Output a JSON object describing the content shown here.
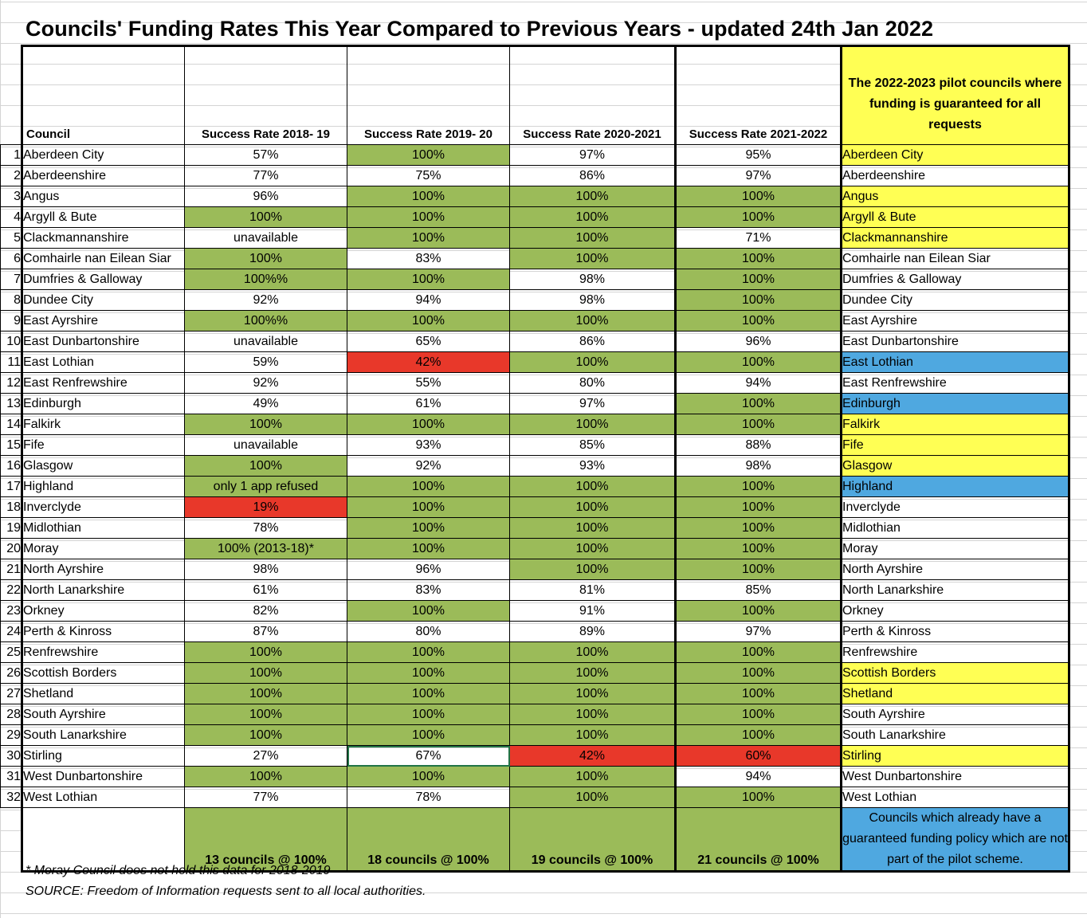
{
  "title": "Councils' Funding Rates This Year Compared to Previous Years - updated 24th Jan 2022",
  "headers": {
    "council": "Council",
    "y1819": "Success Rate 2018- 19",
    "y1920": "Success Rate 2019- 20",
    "y2021": "Success Rate 2020-2021",
    "y2122": "Success Rate 2021-2022",
    "pilot": "The 2022-2023 pilot councils where funding is guaranteed for all requests"
  },
  "rows": [
    {
      "n": "1",
      "council": "Aberdeen City",
      "v": [
        "57%",
        "100%",
        "97%",
        "95%"
      ],
      "pilot": "Aberdeen City"
    },
    {
      "n": "2",
      "council": "Aberdeenshire",
      "v": [
        "77%",
        "75%",
        "86%",
        "97%"
      ],
      "pilot": "Aberdeenshire"
    },
    {
      "n": "3",
      "council": "Angus",
      "v": [
        "96%",
        "100%",
        "100%",
        "100%"
      ],
      "pilot": "Angus"
    },
    {
      "n": "4",
      "council": "Argyll & Bute",
      "v": [
        "100%",
        "100%",
        "100%",
        "100%"
      ],
      "pilot": "Argyll & Bute"
    },
    {
      "n": "5",
      "council": "Clackmannanshire",
      "v": [
        "unavailable",
        "100%",
        "100%",
        "71%"
      ],
      "pilot": "Clackmannanshire"
    },
    {
      "n": "6",
      "council": "Comhairle nan Eilean Siar",
      "v": [
        "100%",
        "83%",
        "100%",
        "100%"
      ],
      "pilot": "Comhairle nan Eilean Siar"
    },
    {
      "n": "7",
      "council": "Dumfries & Galloway",
      "v": [
        "100%%",
        "100%",
        "98%",
        "100%"
      ],
      "pilot": "Dumfries & Galloway"
    },
    {
      "n": "8",
      "council": "Dundee City",
      "v": [
        "92%",
        "94%",
        "98%",
        "100%"
      ],
      "pilot": "Dundee City"
    },
    {
      "n": "9",
      "council": "East Ayrshire",
      "v": [
        "100%%",
        "100%",
        "100%",
        "100%"
      ],
      "pilot": "East Ayrshire"
    },
    {
      "n": "10",
      "council": "East Dunbartonshire",
      "v": [
        "unavailable",
        "65%",
        "86%",
        "96%"
      ],
      "pilot": "East Dunbartonshire"
    },
    {
      "n": "11",
      "council": "East Lothian",
      "v": [
        "59%",
        "42%",
        "100%",
        "100%"
      ],
      "pilot": "East Lothian"
    },
    {
      "n": "12",
      "council": "East Renfrewshire",
      "v": [
        "92%",
        "55%",
        "80%",
        "94%"
      ],
      "pilot": "East Renfrewshire"
    },
    {
      "n": "13",
      "council": "Edinburgh",
      "v": [
        "49%",
        "61%",
        "97%",
        "100%"
      ],
      "pilot": "Edinburgh"
    },
    {
      "n": "14",
      "council": "Falkirk",
      "v": [
        "100%",
        "100%",
        "100%",
        "100%"
      ],
      "pilot": "Falkirk"
    },
    {
      "n": "15",
      "council": "Fife",
      "v": [
        "unavailable",
        "93%",
        "85%",
        "88%"
      ],
      "pilot": "Fife"
    },
    {
      "n": "16",
      "council": "Glasgow",
      "v": [
        "100%",
        "92%",
        "93%",
        "98%"
      ],
      "pilot": "Glasgow"
    },
    {
      "n": "17",
      "council": "Highland",
      "v": [
        "only 1 app refused",
        "100%",
        "100%",
        "100%"
      ],
      "pilot": "Highland"
    },
    {
      "n": "18",
      "council": "Inverclyde",
      "v": [
        "19%",
        "100%",
        "100%",
        "100%"
      ],
      "pilot": "Inverclyde"
    },
    {
      "n": "19",
      "council": "Midlothian",
      "v": [
        "78%",
        "100%",
        "100%",
        "100%"
      ],
      "pilot": "Midlothian"
    },
    {
      "n": "20",
      "council": "Moray",
      "v": [
        "100% (2013-18)*",
        "100%",
        "100%",
        "100%"
      ],
      "pilot": "Moray"
    },
    {
      "n": "21",
      "council": "North Ayrshire",
      "v": [
        "98%",
        "96%",
        "100%",
        "100%"
      ],
      "pilot": "North Ayrshire"
    },
    {
      "n": "22",
      "council": "North Lanarkshire",
      "v": [
        "61%",
        "83%",
        "81%",
        "85%"
      ],
      "pilot": "North Lanarkshire"
    },
    {
      "n": "23",
      "council": "Orkney",
      "v": [
        "82%",
        "100%",
        "91%",
        "100%"
      ],
      "pilot": "Orkney"
    },
    {
      "n": "24",
      "council": "Perth & Kinross",
      "v": [
        "87%",
        "80%",
        "89%",
        "97%"
      ],
      "pilot": "Perth & Kinross"
    },
    {
      "n": "25",
      "council": "Renfrewshire",
      "v": [
        "100%",
        "100%",
        "100%",
        "100%"
      ],
      "pilot": "Renfrewshire"
    },
    {
      "n": "26",
      "council": "Scottish Borders",
      "v": [
        "100%",
        "100%",
        "100%",
        "100%"
      ],
      "pilot": "Scottish Borders"
    },
    {
      "n": "27",
      "council": "Shetland",
      "v": [
        "100%",
        "100%",
        "100%",
        "100%"
      ],
      "pilot": "Shetland"
    },
    {
      "n": "28",
      "council": "South Ayrshire",
      "v": [
        "100%",
        "100%",
        "100%",
        "100%"
      ],
      "pilot": "South Ayrshire"
    },
    {
      "n": "29",
      "council": "South Lanarkshire",
      "v": [
        "100%",
        "100%",
        "100%",
        "100%"
      ],
      "pilot": "South Lanarkshire"
    },
    {
      "n": "30",
      "council": "Stirling",
      "v": [
        "27%",
        "67%",
        "42%",
        "60%"
      ],
      "pilot": "Stirling"
    },
    {
      "n": "31",
      "council": "West Dunbartonshire",
      "v": [
        "100%",
        "100%",
        "100%",
        "94%"
      ],
      "pilot": "West Dunbartonshire"
    },
    {
      "n": "32",
      "council": "West Lothian",
      "v": [
        "77%",
        "78%",
        "100%",
        "100%"
      ],
      "pilot": "West Lothian"
    }
  ],
  "summary": [
    "13 councils @ 100%",
    "18 councils @ 100%",
    "19 councils @ 100%",
    "21 councils @ 100%"
  ],
  "legend": "Councils which already have a guaranteed funding policy which are not part of the pilot scheme.",
  "footnotes": {
    "moray": "* Moray Council does not hold this data for 2018-2019",
    "source": "SOURCE: Freedom of Information requests sent to all local authorities."
  },
  "colors": {
    "green": "#9bbb59",
    "red": "#e8382a",
    "yellow": "#ffff54",
    "blue": "#4fa8e0"
  }
}
